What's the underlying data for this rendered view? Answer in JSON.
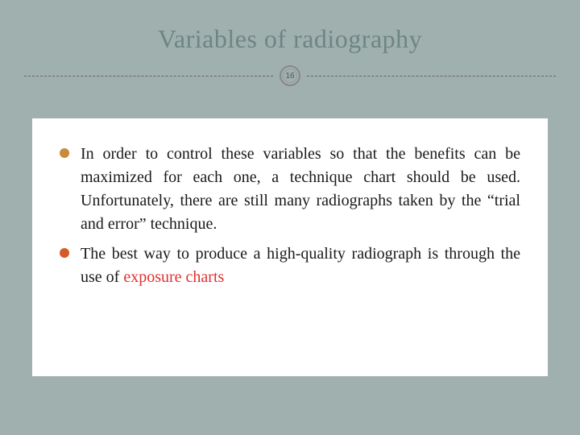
{
  "slide": {
    "title": "Variables of radiography",
    "page_number": "16",
    "background_color": "#a0b0ae",
    "title_color": "#6d8683",
    "title_fontsize": 32,
    "content_background": "#ffffff",
    "divider_color": "#666666",
    "bullets": [
      {
        "color": "#c98a3a",
        "text": "In order to control these variables so that the benefits can be maximized for each one, a technique chart should be used. Unfortunately, there are still many radiographs taken by the “trial and error” technique.",
        "highlight": ""
      },
      {
        "color": "#d55a2a",
        "text": "The best way to produce a high-quality radiograph is through the use of ",
        "highlight": "exposure charts"
      }
    ],
    "body_fontsize": 20,
    "highlight_color": "#e03030",
    "body_text_color": "#1a1a1a"
  }
}
